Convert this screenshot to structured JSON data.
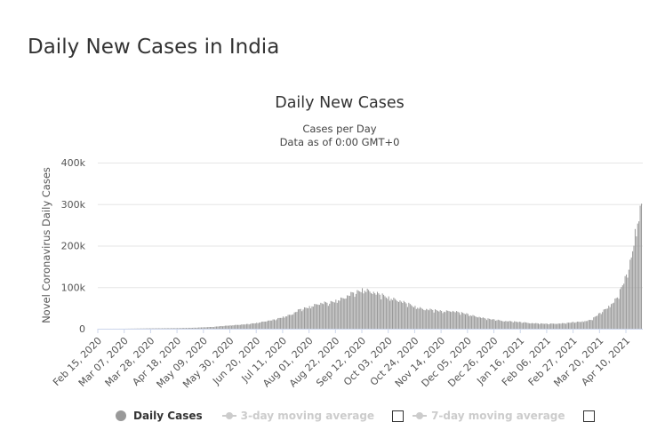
{
  "page": {
    "title": "Daily New Cases in India"
  },
  "chart_data": {
    "type": "bar",
    "title": "Daily New Cases",
    "subtitle_lines": [
      "Cases per Day",
      "Data as of 0:00 GMT+0"
    ],
    "ylabel": "Novel Coronavirus Daily Cases",
    "xlabel": "",
    "ylim": [
      0,
      400000
    ],
    "y_ticks": [
      0,
      100000,
      200000,
      300000,
      400000
    ],
    "y_tick_labels": [
      "0",
      "100k",
      "200k",
      "300k",
      "400k"
    ],
    "x_tick_labels": [
      "Feb 15, 2020",
      "Mar 07, 2020",
      "Mar 28, 2020",
      "Apr 18, 2020",
      "May 09, 2020",
      "May 30, 2020",
      "Jun 20, 2020",
      "Jul 11, 2020",
      "Aug 01, 2020",
      "Aug 22, 2020",
      "Sep 12, 2020",
      "Oct 03, 2020",
      "Oct 24, 2020",
      "Nov 14, 2020",
      "Dec 05, 2020",
      "Dec 26, 2020",
      "Jan 16, 2021",
      "Feb 06, 2021",
      "Feb 27, 2021",
      "Mar 20, 2021",
      "Apr 10, 2021"
    ],
    "x_range": [
      "2020-02-15",
      "2021-04-22"
    ],
    "bar_color": "#999999",
    "grid": true,
    "legend_position": "bottom",
    "series": [
      {
        "name": "Daily Cases",
        "x": [
          "2020-02-15",
          "2020-03-07",
          "2020-03-28",
          "2020-04-18",
          "2020-05-02",
          "2020-05-09",
          "2020-05-16",
          "2020-05-23",
          "2020-05-30",
          "2020-06-06",
          "2020-06-13",
          "2020-06-20",
          "2020-06-27",
          "2020-07-04",
          "2020-07-11",
          "2020-07-18",
          "2020-07-25",
          "2020-08-01",
          "2020-08-08",
          "2020-08-15",
          "2020-08-22",
          "2020-08-29",
          "2020-09-05",
          "2020-09-12",
          "2020-09-17",
          "2020-09-22",
          "2020-09-29",
          "2020-10-03",
          "2020-10-10",
          "2020-10-17",
          "2020-10-24",
          "2020-10-31",
          "2020-11-07",
          "2020-11-14",
          "2020-11-21",
          "2020-11-28",
          "2020-12-05",
          "2020-12-12",
          "2020-12-19",
          "2020-12-26",
          "2021-01-02",
          "2021-01-09",
          "2021-01-16",
          "2021-01-23",
          "2021-01-30",
          "2021-02-06",
          "2021-02-13",
          "2021-02-20",
          "2021-02-27",
          "2021-03-06",
          "2021-03-13",
          "2021-03-20",
          "2021-03-27",
          "2021-04-03",
          "2021-04-10",
          "2021-04-14",
          "2021-04-17",
          "2021-04-20",
          "2021-04-22"
        ],
        "values": [
          0,
          100,
          1000,
          1500,
          2500,
          3500,
          4500,
          6500,
          8000,
          9500,
          11500,
          14000,
          18000,
          22500,
          28500,
          35000,
          48000,
          53000,
          61000,
          63000,
          68000,
          76000,
          88000,
          95000,
          93000,
          87000,
          80000,
          76000,
          70000,
          62000,
          54000,
          48000,
          46000,
          42000,
          44000,
          40000,
          35000,
          30000,
          25000,
          22000,
          19000,
          18000,
          16000,
          14000,
          13000,
          12000,
          12500,
          13500,
          16000,
          17000,
          22000,
          38000,
          53000,
          78000,
          130000,
          170000,
          230000,
          270000,
          295000
        ]
      },
      {
        "name": "3-day moving average",
        "visible": false
      },
      {
        "name": "7-day moving average",
        "visible": false
      }
    ]
  }
}
